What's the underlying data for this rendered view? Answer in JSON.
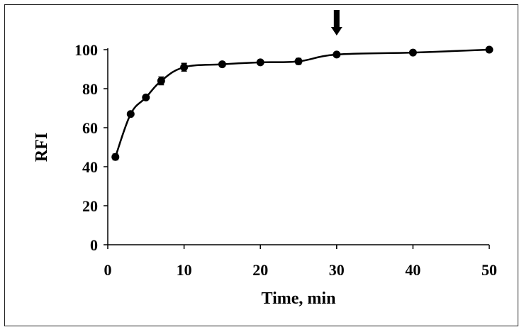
{
  "chart_data": {
    "type": "line",
    "title": "",
    "xlabel": "Time, min",
    "ylabel": "RFI",
    "xlim": [
      0,
      50
    ],
    "ylim": [
      0,
      100
    ],
    "x_ticks": [
      0,
      10,
      20,
      30,
      40,
      50
    ],
    "y_ticks": [
      0,
      20,
      40,
      60,
      80,
      100
    ],
    "grid": false,
    "legend": "none",
    "marker": "circle",
    "line_color": "#000000",
    "series": [
      {
        "x": [
          1,
          3,
          5,
          7,
          10,
          15,
          20,
          25,
          30,
          40,
          50
        ],
        "y": [
          45,
          67,
          75.5,
          84,
          91,
          92.5,
          93.5,
          94,
          97.5,
          98.5,
          100
        ],
        "error": [
          1.5,
          1,
          1,
          2,
          2,
          1,
          1,
          1.5,
          1,
          1,
          1
        ]
      }
    ],
    "annotations": [
      {
        "type": "arrow-down",
        "x": 30,
        "points_to_y": 97.5
      }
    ]
  }
}
